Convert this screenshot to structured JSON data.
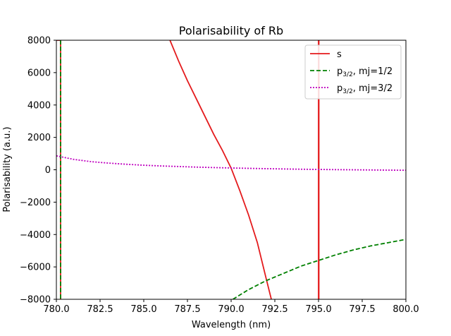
{
  "chart_data": {
    "type": "line",
    "title": "Polarisability of Rb",
    "xlabel": "Wavelength (nm)",
    "ylabel": "Polarisability (a.u.)",
    "xlim": [
      780.0,
      800.0
    ],
    "ylim": [
      -8000,
      8000
    ],
    "x_ticks": [
      "780.0",
      "782.5",
      "785.0",
      "787.5",
      "790.0",
      "792.5",
      "795.0",
      "797.5",
      "800.0"
    ],
    "y_ticks": [
      "−8000",
      "−6000",
      "−4000",
      "−2000",
      "0",
      "2000",
      "4000",
      "6000",
      "8000"
    ],
    "grid": false,
    "legend_position": "top-right",
    "series": [
      {
        "name": "s",
        "color": "#e41a1c",
        "style": "solid",
        "resonances": [
          780.24,
          795.0
        ],
        "segments": [
          {
            "x": [
              780.0,
              780.1,
              780.2,
              780.24
            ],
            "y": [
              8000,
              8000,
              8000,
              8000
            ]
          },
          {
            "x": [
              786.5,
              787.0,
              787.5,
              788.0,
              788.5,
              789.0,
              789.5,
              790.0,
              790.5,
              791.0,
              791.5,
              792.0,
              792.3
            ],
            "y": [
              8000,
              6700,
              5500,
              4400,
              3300,
              2200,
              1200,
              100,
              -1300,
              -2800,
              -4500,
              -6700,
              -8000
            ]
          },
          {
            "x": [
              795.02,
              795.02
            ],
            "y": [
              8000,
              -8000
            ]
          }
        ]
      },
      {
        "name": "p3/2, mj=1/2",
        "label_base": "p",
        "label_sub": "3/2",
        "label_rest": ", mj=1/2",
        "color": "#008000",
        "style": "dashed",
        "resonances": [
          780.24
        ],
        "segments": [
          {
            "x": [
              790.1,
              791.0,
              792.0,
              793.0,
              794.0,
              795.0,
              796.0,
              797.0,
              798.0,
              799.0,
              800.0
            ],
            "y": [
              -8000,
              -7400,
              -6850,
              -6400,
              -5950,
              -5600,
              -5250,
              -4950,
              -4700,
              -4500,
              -4300
            ]
          }
        ]
      },
      {
        "name": "p3/2, mj=3/2",
        "label_base": "p",
        "label_sub": "3/2",
        "label_rest": ", mj=3/2",
        "color": "#bf00bf",
        "style": "dotted",
        "segments": [
          {
            "x": [
              780.0,
              781.0,
              782.0,
              783.0,
              784.0,
              785.0,
              786.0,
              787.0,
              788.0,
              789.0,
              790.0,
              791.0,
              792.0,
              793.0,
              794.0,
              795.0,
              796.0,
              797.0,
              798.0,
              799.0,
              800.0
            ],
            "y": [
              860,
              640,
              500,
              410,
              340,
              280,
              235,
              200,
              165,
              135,
              110,
              88,
              68,
              50,
              34,
              20,
              8,
              -2,
              -12,
              -22,
              -30
            ]
          }
        ]
      }
    ]
  }
}
